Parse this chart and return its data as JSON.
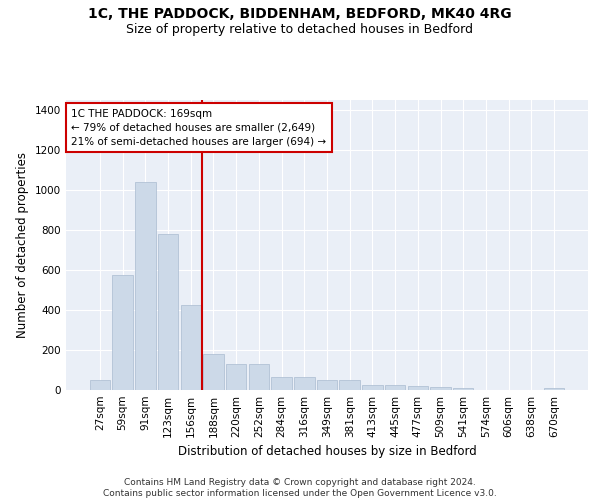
{
  "title1": "1C, THE PADDOCK, BIDDENHAM, BEDFORD, MK40 4RG",
  "title2": "Size of property relative to detached houses in Bedford",
  "xlabel": "Distribution of detached houses by size in Bedford",
  "ylabel": "Number of detached properties",
  "categories": [
    "27sqm",
    "59sqm",
    "91sqm",
    "123sqm",
    "156sqm",
    "188sqm",
    "220sqm",
    "252sqm",
    "284sqm",
    "316sqm",
    "349sqm",
    "381sqm",
    "413sqm",
    "445sqm",
    "477sqm",
    "509sqm",
    "541sqm",
    "574sqm",
    "606sqm",
    "638sqm",
    "670sqm"
  ],
  "values": [
    50,
    575,
    1040,
    780,
    425,
    180,
    130,
    130,
    65,
    65,
    50,
    50,
    25,
    25,
    20,
    15,
    10,
    0,
    0,
    0,
    10
  ],
  "bar_color": "#ccd9e8",
  "bar_edge_color": "#aabbd0",
  "vline_x": 4.5,
  "vline_color": "#cc0000",
  "annotation_text": "1C THE PADDOCK: 169sqm\n← 79% of detached houses are smaller (2,649)\n21% of semi-detached houses are larger (694) →",
  "annotation_box_color": "#ffffff",
  "annotation_box_edge": "#cc0000",
  "ylim": [
    0,
    1450
  ],
  "yticks": [
    0,
    200,
    400,
    600,
    800,
    1000,
    1200,
    1400
  ],
  "background_color": "#eaeff7",
  "footer": "Contains HM Land Registry data © Crown copyright and database right 2024.\nContains public sector information licensed under the Open Government Licence v3.0.",
  "title1_fontsize": 10,
  "title2_fontsize": 9,
  "xlabel_fontsize": 8.5,
  "ylabel_fontsize": 8.5,
  "tick_fontsize": 7.5,
  "annotation_fontsize": 7.5,
  "footer_fontsize": 6.5
}
